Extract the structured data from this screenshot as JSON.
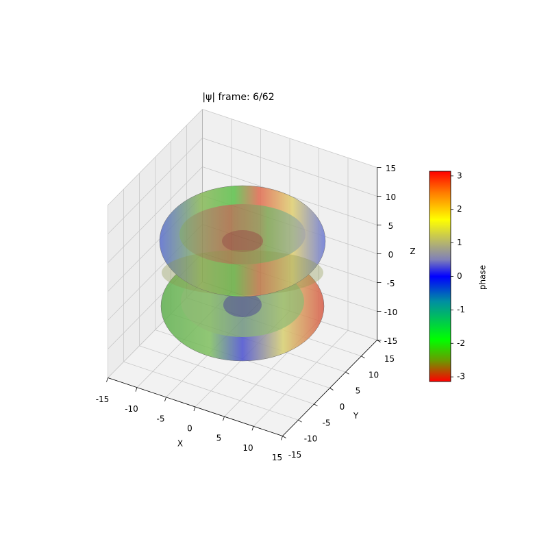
{
  "chart_data": {
    "type": "surface3d",
    "title": "|ψ| frame: 6/62",
    "xlabel": "X",
    "ylabel": "Y",
    "zlabel": "Z",
    "xlim": [
      -15,
      15
    ],
    "xticks": [
      -15,
      -10,
      -5,
      0,
      5,
      10,
      15
    ],
    "ylim": [
      -15,
      15
    ],
    "yticks": [
      -15,
      -10,
      -5,
      0,
      5,
      10,
      15
    ],
    "zlim": [
      -15,
      15
    ],
    "zticks": [
      -15,
      -10,
      -5,
      0,
      5,
      10,
      15
    ],
    "grid": true,
    "colorbar": {
      "label": "phase",
      "lim": [
        -3.14,
        3.14
      ],
      "ticks": [
        -3,
        -2,
        -1,
        0,
        1,
        2,
        3
      ]
    }
  }
}
